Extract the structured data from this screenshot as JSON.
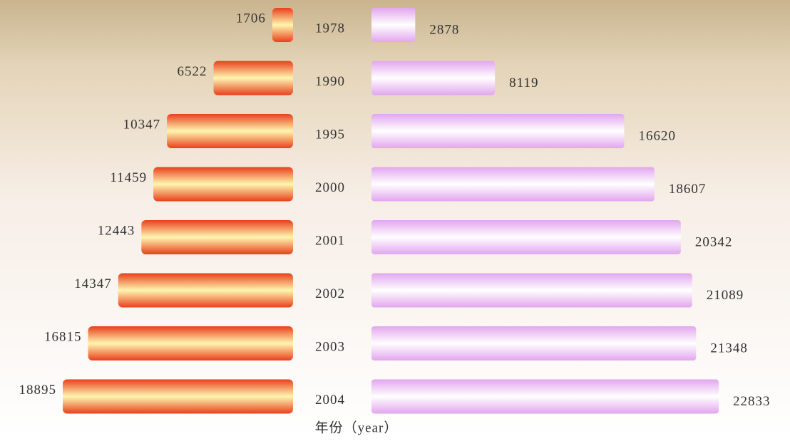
{
  "chart_data": {
    "type": "butterfly",
    "categories": [
      "1978",
      "1990",
      "1995",
      "2000",
      "2001",
      "2002",
      "2003",
      "2004"
    ],
    "series": [
      {
        "color": "#e8401c",
        "values": [
          1706,
          6522,
          10347,
          11459,
          12443,
          14347,
          16815,
          18895
        ]
      },
      {
        "color": "#e2a6ee",
        "values": [
          2878,
          8119,
          16620,
          18607,
          20342,
          21089,
          21348,
          22833
        ]
      }
    ],
    "x_label": "年份（year）"
  }
}
